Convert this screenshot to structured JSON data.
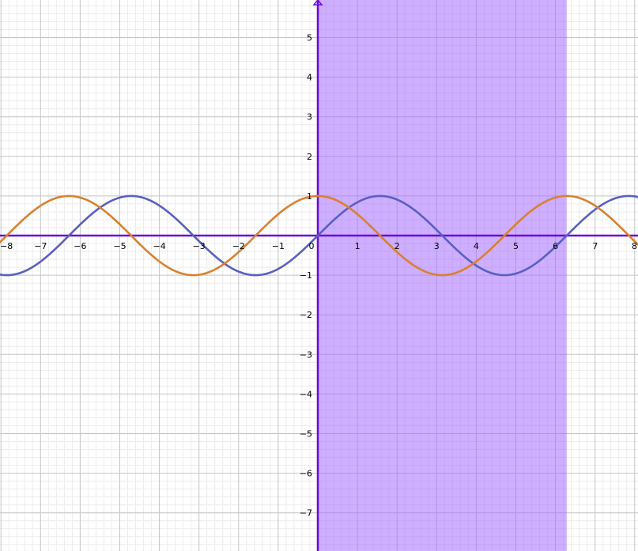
{
  "chart_data": {
    "type": "line",
    "title": "",
    "xlabel": "",
    "ylabel": "",
    "xlim": [
      -8,
      8
    ],
    "ylim": [
      -8,
      6
    ],
    "x_tick_labels": [
      "−8",
      "−7",
      "−6",
      "−5",
      "−4",
      "−3",
      "−2",
      "−1",
      "0",
      "1",
      "2",
      "3",
      "4",
      "5",
      "6",
      "7",
      "8"
    ],
    "y_tick_labels": [
      "5",
      "4",
      "3",
      "2",
      "1",
      "−1",
      "−2",
      "−3",
      "−4",
      "−5",
      "−6",
      "−7"
    ],
    "grid": true,
    "series": [
      {
        "function": "sin(x)",
        "color": "#5a5fc2"
      },
      {
        "function": "cos(x)",
        "color": "#d9812f"
      }
    ],
    "shaded_region": {
      "x_from": 0,
      "x_to": 6.283,
      "color": "#a46bff"
    },
    "axis_color": "#6a0ad8"
  }
}
